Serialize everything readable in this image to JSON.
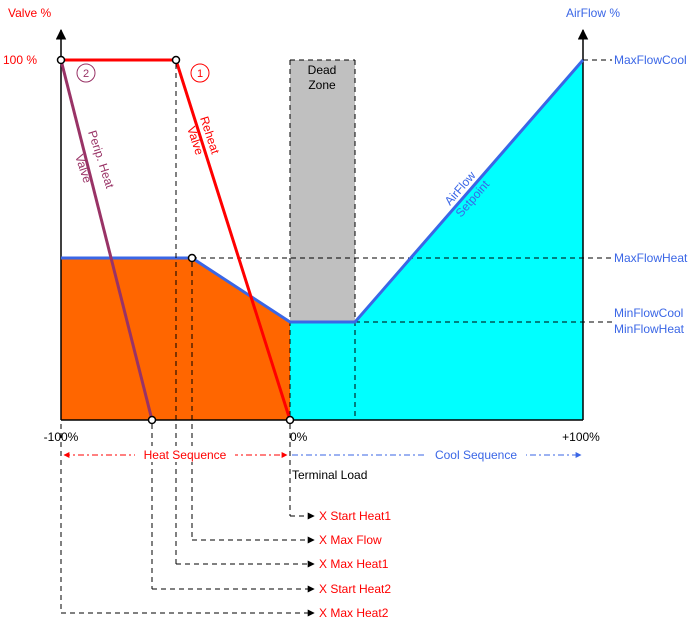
{
  "colors": {
    "valve": "#ff0000",
    "airflow": "#3a66e6",
    "heat_fill": "#ff6600",
    "cool_fill": "#00ffff",
    "dead_zone": "#c0c0c0",
    "periph": "#993366",
    "axis": "#000000"
  },
  "axes": {
    "left_title": "Valve %",
    "right_title": "AirFlow %",
    "y100": "100 %",
    "x_min": "-100%",
    "x_zero": "0%",
    "x_max": "+100%",
    "x_title": "Terminal Load"
  },
  "right_labels": {
    "max_cool": "MaxFlowCool",
    "max_heat": "MaxFlowHeat",
    "min_cool": "MinFlowCool",
    "min_heat": "MinFlowHeat"
  },
  "dead_zone": {
    "line1": "Dead",
    "line2": "Zone"
  },
  "curves": {
    "reheat_line1": "Reheat",
    "reheat_line2": "Valve",
    "periph_line1": "Perip. Heat",
    "periph_line2": "Valve",
    "airflow_line1": "AirFlow",
    "airflow_line2": "Setpoint",
    "marker1": "1",
    "marker2": "2"
  },
  "sequences": {
    "heat": "Heat Sequence",
    "cool": "Cool Sequence"
  },
  "params": [
    "X Start Heat1",
    "X Max Flow",
    "X Max Heat1",
    "X Start Heat2",
    "X Max Heat2"
  ]
}
